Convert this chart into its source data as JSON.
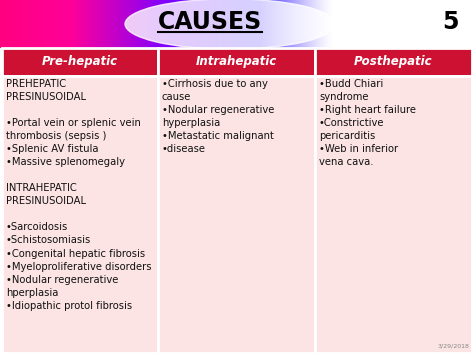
{
  "title": "CAUSES",
  "title_number": "5",
  "bg_color": "#ffffff",
  "header_bg": "#cc1133",
  "header_text_color": "#ffffff",
  "cell_bg": "#fce4e4",
  "cell_text_color": "#111111",
  "header_row": [
    "Pre-hepatic",
    "Intrahepatic",
    "Posthepatic"
  ],
  "col1_text": "PREHEPATIC\nPRESINUSOIDAL\n\n•Portal vein or splenic vein\nthrombosis (sepsis )\n•Splenic AV fistula\n•Massive splenomegaly\n\nINTRAHEPATIC\nPRESINUSOIDAL\n\n•Sarcoidosis\n•Schistosomiasis\n•Congenital hepatic fibrosis\n•Myeloproliferative disorders\n•Nodular regenerative\nhperplasia\n•Idiopathic protol fibrosis",
  "col2_text": "•Cirrhosis due to any\ncause\n•Nodular regenerative\nhyperplasia\n•Metastatic malignant\n•disease",
  "col3_text": "•Budd Chiari\nsyndrome\n•Right heart failure\n•Constrictive\npericarditis\n•Web in inferior\nvena cava.",
  "date_text": "3/29/2018",
  "header_fontsize": 8.5,
  "cell_fontsize": 7.2,
  "title_fontsize": 17
}
